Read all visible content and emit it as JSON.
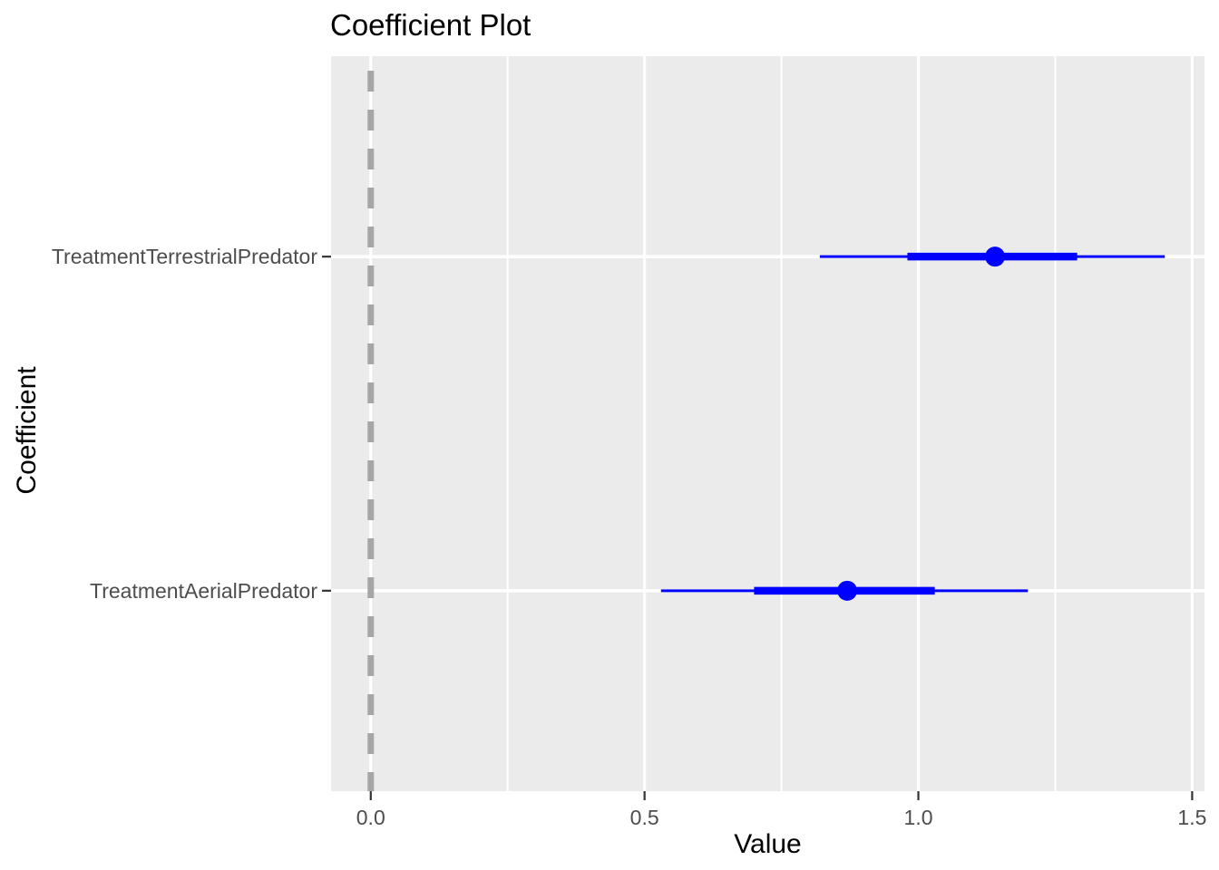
{
  "chart_data": {
    "type": "scatter",
    "subtype": "coefficient-pointrange",
    "title": "Coefficient Plot",
    "xlabel": "Value",
    "ylabel": "Coefficient",
    "xlim": [
      -0.0725,
      1.5225
    ],
    "x_ticks": [
      0.0,
      0.5,
      1.0,
      1.5
    ],
    "x_tick_labels": [
      "0.0",
      "0.5",
      "1.0",
      "1.5"
    ],
    "x_minor_gridlines": [
      0.25,
      0.75,
      1.25
    ],
    "categories": [
      "TreatmentTerrestrialPredator",
      "TreatmentAerialPredator"
    ],
    "points": [
      {
        "label": "TreatmentTerrestrialPredator",
        "estimate": 1.14,
        "inner_low": 0.98,
        "inner_high": 1.29,
        "outer_low": 0.82,
        "outer_high": 1.45
      },
      {
        "label": "TreatmentAerialPredator",
        "estimate": 0.87,
        "inner_low": 0.7,
        "inner_high": 1.03,
        "outer_low": 0.53,
        "outer_high": 1.2
      }
    ],
    "reference_line": {
      "x": 0,
      "style": "dashed"
    },
    "legend": "none",
    "grid": true,
    "colors": {
      "point": "#0000ff",
      "panel_bg": "#ebebeb",
      "gridline": "#ffffff",
      "reference_line": "#a6a6a6",
      "tick_mark": "#333333",
      "tick_text": "#4d4d4d",
      "axis_title": "#000000"
    }
  }
}
